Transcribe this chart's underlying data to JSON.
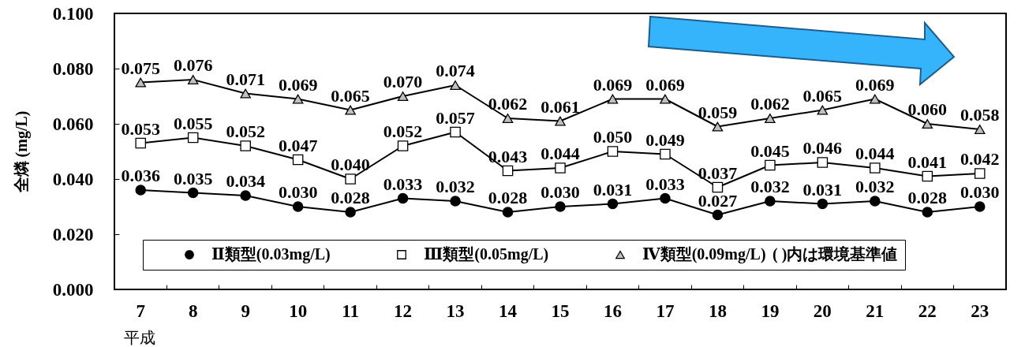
{
  "chart_data": {
    "type": "line",
    "xlabel": "平成",
    "ylabel": "全燐 (mg/L)",
    "categories": [
      "7",
      "8",
      "9",
      "10",
      "11",
      "12",
      "13",
      "14",
      "15",
      "16",
      "17",
      "18",
      "19",
      "20",
      "21",
      "22",
      "23"
    ],
    "ylim": [
      0,
      0.1
    ],
    "yticks": [
      {
        "value": 0,
        "label": "0.000"
      },
      {
        "value": 0.02,
        "label": "0.020"
      },
      {
        "value": 0.04,
        "label": "0.040"
      },
      {
        "value": 0.06,
        "label": "0.060"
      },
      {
        "value": 0.08,
        "label": "0.080"
      },
      {
        "value": 0.1,
        "label": "0.100"
      }
    ],
    "grid": false,
    "legend": "bottom",
    "annotations": [
      "( )内は環境基準値"
    ],
    "series": [
      {
        "name": "Ⅱ類型(0.03mg/L)",
        "color": "#000000",
        "marker": "circle",
        "values": [
          0.036,
          0.035,
          0.034,
          0.03,
          0.028,
          0.033,
          0.032,
          0.028,
          0.03,
          0.031,
          0.033,
          0.027,
          0.032,
          0.031,
          0.032,
          0.028,
          0.03
        ],
        "value_labels": [
          "0.036",
          "0.035",
          "0.034",
          "0.030",
          "0.028",
          "0.033",
          "0.032",
          "0.028",
          "0.030",
          "0.031",
          "0.033",
          "0.027",
          "0.032",
          "0.031",
          "0.032",
          "0.028",
          "0.030"
        ]
      },
      {
        "name": "Ⅲ類型(0.05mg/L)",
        "color": "#ffffff",
        "marker": "square",
        "values": [
          0.053,
          0.055,
          0.052,
          0.047,
          0.04,
          0.052,
          0.057,
          0.043,
          0.044,
          0.05,
          0.049,
          0.037,
          0.045,
          0.046,
          0.044,
          0.041,
          0.042
        ],
        "value_labels": [
          "0.053",
          "0.055",
          "0.052",
          "0.047",
          "0.040",
          "0.052",
          "0.057",
          "0.043",
          "0.044",
          "0.050",
          "0.049",
          "0.037",
          "0.045",
          "0.046",
          "0.044",
          "0.041",
          "0.042"
        ]
      },
      {
        "name": "Ⅳ類型(0.09mg/L)",
        "color": "#c0c0c0",
        "marker": "triangle",
        "values": [
          0.075,
          0.076,
          0.071,
          0.069,
          0.065,
          0.07,
          0.074,
          0.062,
          0.061,
          0.069,
          0.069,
          0.059,
          0.062,
          0.065,
          0.069,
          0.06,
          0.058
        ],
        "value_labels": [
          "0.075",
          "0.076",
          "0.071",
          "0.069",
          "0.065",
          "0.070",
          "0.074",
          "0.062",
          "0.061",
          "0.069",
          "0.069",
          "0.059",
          "0.062",
          "0.065",
          "0.069",
          "0.060",
          "0.058"
        ]
      }
    ]
  }
}
